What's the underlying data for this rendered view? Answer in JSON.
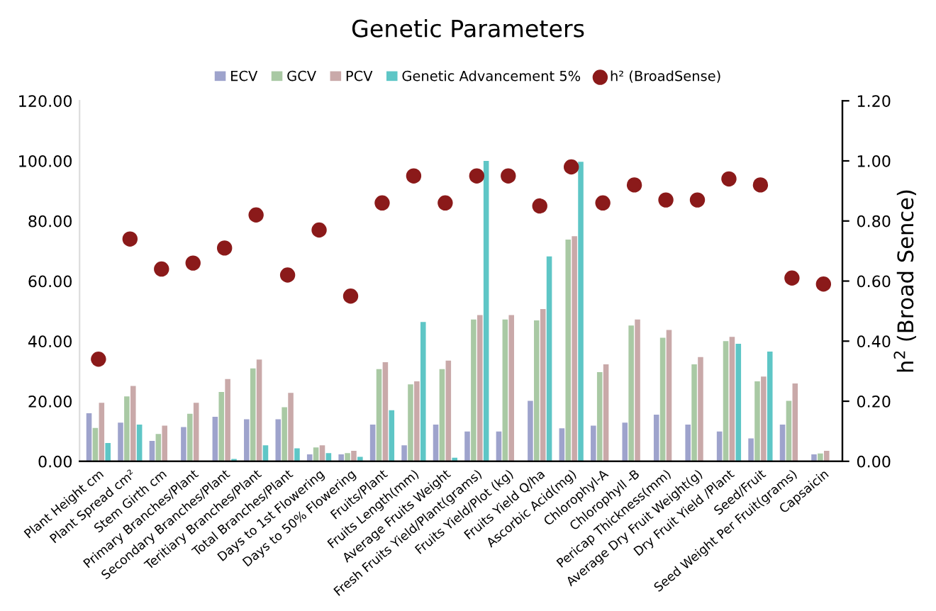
{
  "chart_data": {
    "type": "bar",
    "title": "Genetic Parameters",
    "categories": [
      "Plant Height cm",
      "Plant Spread cm²",
      "Stem Girth cm",
      "Primary Branches/Plant",
      "Secondary Branches/Plant",
      "Teritiary Branches/Plant",
      "Total Branches/Plant",
      "Days to 1st Flowering",
      "Days to 50% Flowering",
      "Fruits/Plant",
      "Fruits Length(mm)",
      "Average Fruits Weight",
      "Fresh Fruits Yield/Plant(grams)",
      "Fruits Yield/Plot (kg)",
      "Fruits Yield Q/ha",
      "Ascorbic Acid(mg)",
      "Chlorophyl-A",
      "Chlorophyll -B",
      "Pericap Thickness(mm)",
      "Average Dry Fruit Weight(g)",
      "Dry Fruit Yield /Plant",
      "Seed/Fruit",
      "Seed Weight Per Fruit(grams)",
      "Capsaicin"
    ],
    "series": [
      {
        "name": "ECV",
        "color": "#9ea3cc",
        "values": [
          16.0,
          12.9,
          6.8,
          11.4,
          14.8,
          14.0,
          14.0,
          2.3,
          2.3,
          12.2,
          5.3,
          12.2,
          9.9,
          9.9,
          20.1,
          11.0,
          11.9,
          12.9,
          15.5,
          12.2,
          9.9,
          7.6,
          12.2,
          2.3
        ]
      },
      {
        "name": "GCV",
        "color": "#a9c9a4",
        "values": [
          11.1,
          21.6,
          9.1,
          15.8,
          23.1,
          30.9,
          18.0,
          4.6,
          2.7,
          30.7,
          25.6,
          30.7,
          47.2,
          47.2,
          46.9,
          73.8,
          29.7,
          45.2,
          41.1,
          32.3,
          40.0,
          26.6,
          20.1,
          2.6
        ]
      },
      {
        "name": "PCV",
        "color": "#c9a9a9",
        "values": [
          19.5,
          25.1,
          11.9,
          19.5,
          27.4,
          33.9,
          22.8,
          5.3,
          3.5,
          33.0,
          26.6,
          33.5,
          48.7,
          48.7,
          50.7,
          74.9,
          32.3,
          47.2,
          43.7,
          34.7,
          41.4,
          28.2,
          25.9,
          3.5
        ]
      },
      {
        "name": "Genetic Advancement 5%",
        "color": "#5ec6c6",
        "values": [
          6.1,
          12.2,
          0,
          null,
          0.8,
          5.3,
          4.3,
          2.7,
          1.5,
          17.0,
          46.4,
          1.2,
          100,
          null,
          68.2,
          99.7,
          0,
          0,
          null,
          null,
          39.1,
          36.5,
          0,
          0
        ]
      },
      {
        "name": "h² (BroadSense)",
        "type": "scatter",
        "axis": "y2",
        "marker": "circle",
        "color": "#8b1a1a",
        "values": [
          0.34,
          0.74,
          0.64,
          0.66,
          0.71,
          0.82,
          0.62,
          0.77,
          0.55,
          0.86,
          0.95,
          0.86,
          0.95,
          0.95,
          0.85,
          0.98,
          0.86,
          0.92,
          0.87,
          0.87,
          0.94,
          0.92,
          0.61,
          0.59
        ]
      }
    ],
    "ylim": [
      0,
      120
    ],
    "yticks": [
      {
        "value": 0,
        "label": "0.00"
      },
      {
        "value": 20,
        "label": "20.00"
      },
      {
        "value": 40,
        "label": "40.00"
      },
      {
        "value": 60,
        "label": "60.00"
      },
      {
        "value": 80,
        "label": "80.00"
      },
      {
        "value": 100,
        "label": "100.00"
      },
      {
        "value": 120,
        "label": "120.00"
      }
    ],
    "y2label": "h$^{2}$ (Broad Sence)",
    "y2lim": [
      0,
      1.2
    ],
    "y2ticks": [
      {
        "value": 0,
        "label": "0.00"
      },
      {
        "value": 0.2,
        "label": "0.20"
      },
      {
        "value": 0.4,
        "label": "0.40"
      },
      {
        "value": 0.6,
        "label": "0.60"
      },
      {
        "value": 0.8,
        "label": "0.80"
      },
      {
        "value": 1.0,
        "label": "1.00"
      },
      {
        "value": 1.2,
        "label": "1.20"
      }
    ],
    "grid": false,
    "legend": "top"
  }
}
